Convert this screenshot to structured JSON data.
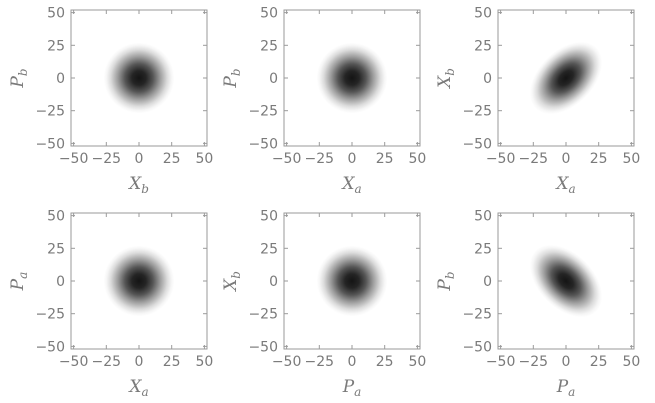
{
  "colors": {
    "axis": "#9a9a9a",
    "text": "#7a7a7a",
    "density_core": "#141414",
    "background": "#ffffff"
  },
  "chart_data": [
    {
      "type": "heatmap",
      "xlabel": {
        "symbol": "X",
        "sub": "b"
      },
      "ylabel": {
        "symbol": "P",
        "sub": "b"
      },
      "xlim": [
        -52,
        52
      ],
      "ylim": [
        -52,
        52
      ],
      "xticks": [
        -50,
        -25,
        0,
        25,
        50
      ],
      "yticks": [
        -50,
        -25,
        0,
        25,
        50
      ],
      "tick_labels": [
        "−50",
        "−25",
        "0",
        "25",
        "50"
      ],
      "distribution": {
        "center": [
          0,
          0
        ],
        "sigma_major": 9,
        "sigma_minor": 9,
        "angle_deg": 0
      }
    },
    {
      "type": "heatmap",
      "xlabel": {
        "symbol": "X",
        "sub": "a"
      },
      "ylabel": {
        "symbol": "P",
        "sub": "b"
      },
      "xlim": [
        -52,
        52
      ],
      "ylim": [
        -52,
        52
      ],
      "xticks": [
        -50,
        -25,
        0,
        25,
        50
      ],
      "yticks": [
        -50,
        -25,
        0,
        25,
        50
      ],
      "tick_labels": [
        "−50",
        "−25",
        "0",
        "25",
        "50"
      ],
      "distribution": {
        "center": [
          0,
          0
        ],
        "sigma_major": 9,
        "sigma_minor": 9,
        "angle_deg": 0
      }
    },
    {
      "type": "heatmap",
      "xlabel": {
        "symbol": "X",
        "sub": "a"
      },
      "ylabel": {
        "symbol": "X",
        "sub": "b"
      },
      "xlim": [
        -52,
        52
      ],
      "ylim": [
        -52,
        52
      ],
      "xticks": [
        -50,
        -25,
        0,
        25,
        50
      ],
      "yticks": [
        -50,
        -25,
        0,
        25,
        50
      ],
      "tick_labels": [
        "−50",
        "−25",
        "0",
        "25",
        "50"
      ],
      "distribution": {
        "center": [
          0,
          0
        ],
        "sigma_major": 11,
        "sigma_minor": 7,
        "angle_deg": 45
      }
    },
    {
      "type": "heatmap",
      "xlabel": {
        "symbol": "X",
        "sub": "a"
      },
      "ylabel": {
        "symbol": "P",
        "sub": "a"
      },
      "xlim": [
        -52,
        52
      ],
      "ylim": [
        -52,
        52
      ],
      "xticks": [
        -50,
        -25,
        0,
        25,
        50
      ],
      "yticks": [
        -50,
        -25,
        0,
        25,
        50
      ],
      "tick_labels": [
        "−50",
        "−25",
        "0",
        "25",
        "50"
      ],
      "distribution": {
        "center": [
          0,
          0
        ],
        "sigma_major": 9,
        "sigma_minor": 9,
        "angle_deg": 0
      }
    },
    {
      "type": "heatmap",
      "xlabel": {
        "symbol": "P",
        "sub": "a"
      },
      "ylabel": {
        "symbol": "X",
        "sub": "b"
      },
      "xlim": [
        -52,
        52
      ],
      "ylim": [
        -52,
        52
      ],
      "xticks": [
        -50,
        -25,
        0,
        25,
        50
      ],
      "yticks": [
        -50,
        -25,
        0,
        25,
        50
      ],
      "tick_labels": [
        "−50",
        "−25",
        "0",
        "25",
        "50"
      ],
      "distribution": {
        "center": [
          0,
          0
        ],
        "sigma_major": 9,
        "sigma_minor": 9,
        "angle_deg": 0
      }
    },
    {
      "type": "heatmap",
      "xlabel": {
        "symbol": "P",
        "sub": "a"
      },
      "ylabel": {
        "symbol": "P",
        "sub": "b"
      },
      "xlim": [
        -52,
        52
      ],
      "ylim": [
        -52,
        52
      ],
      "xticks": [
        -50,
        -25,
        0,
        25,
        50
      ],
      "yticks": [
        -50,
        -25,
        0,
        25,
        50
      ],
      "tick_labels": [
        "−50",
        "−25",
        "0",
        "25",
        "50"
      ],
      "distribution": {
        "center": [
          0,
          0
        ],
        "sigma_major": 11,
        "sigma_minor": 7,
        "angle_deg": -45
      }
    }
  ]
}
